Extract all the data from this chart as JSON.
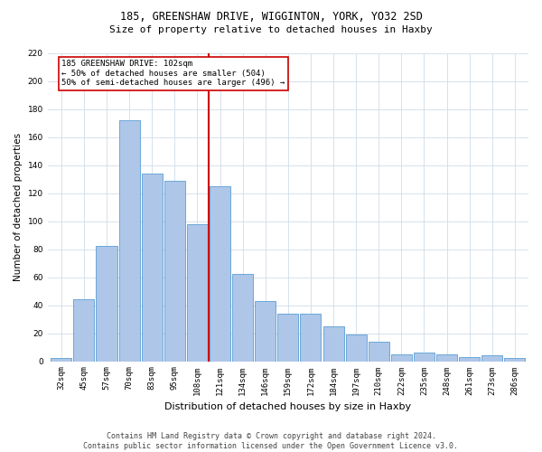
{
  "title": "185, GREENSHAW DRIVE, WIGGINTON, YORK, YO32 2SD",
  "subtitle": "Size of property relative to detached houses in Haxby",
  "xlabel": "Distribution of detached houses by size in Haxby",
  "ylabel": "Number of detached properties",
  "categories": [
    "32sqm",
    "45sqm",
    "57sqm",
    "70sqm",
    "83sqm",
    "95sqm",
    "108sqm",
    "121sqm",
    "134sqm",
    "146sqm",
    "159sqm",
    "172sqm",
    "184sqm",
    "197sqm",
    "210sqm",
    "222sqm",
    "235sqm",
    "248sqm",
    "261sqm",
    "273sqm",
    "286sqm"
  ],
  "values": [
    2,
    44,
    82,
    172,
    134,
    129,
    98,
    125,
    62,
    43,
    34,
    34,
    25,
    19,
    14,
    5,
    6,
    5,
    3,
    4,
    2
  ],
  "bar_color": "#aec6e8",
  "bar_edge_color": "#5a9fd4",
  "vline_x_index": 6,
  "vline_color": "#cc0000",
  "annotation_text": "185 GREENSHAW DRIVE: 102sqm\n← 50% of detached houses are smaller (504)\n50% of semi-detached houses are larger (496) →",
  "annotation_box_color": "#ffffff",
  "annotation_box_edge": "#cc0000",
  "ylim": [
    0,
    220
  ],
  "yticks": [
    0,
    20,
    40,
    60,
    80,
    100,
    120,
    140,
    160,
    180,
    200,
    220
  ],
  "footer_line1": "Contains HM Land Registry data © Crown copyright and database right 2024.",
  "footer_line2": "Contains public sector information licensed under the Open Government Licence v3.0.",
  "background_color": "#ffffff",
  "grid_color": "#d0dde8",
  "title_fontsize": 8.5,
  "subtitle_fontsize": 8,
  "ylabel_fontsize": 7.5,
  "xlabel_fontsize": 8,
  "tick_fontsize": 6.5,
  "annotation_fontsize": 6.5,
  "footer_fontsize": 6
}
